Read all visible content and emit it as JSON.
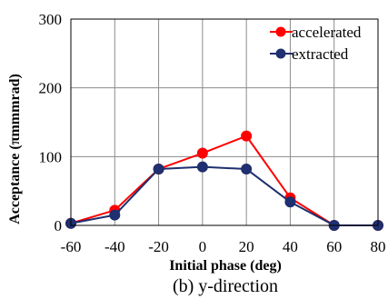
{
  "chart_data": {
    "type": "line",
    "xlabel": "Initial phase (deg)",
    "ylabel": "Acceptance (πmmmrad)",
    "caption": "(b) y-direction",
    "xlim": [
      -60,
      80
    ],
    "ylim": [
      0,
      300
    ],
    "x_ticks": [
      -60,
      -40,
      -20,
      0,
      20,
      40,
      60,
      80
    ],
    "y_ticks": [
      0,
      100,
      200,
      300
    ],
    "grid": true,
    "legend_position": "top-right",
    "x": [
      -60,
      -40,
      -20,
      0,
      20,
      40,
      60,
      80
    ],
    "series": [
      {
        "name": "accelerated",
        "color": "#ff0000",
        "values": [
          3,
          22,
          82,
          105,
          130,
          40,
          0,
          0
        ]
      },
      {
        "name": "extracted",
        "color": "#1f2f6f",
        "values": [
          3,
          15,
          82,
          85,
          82,
          34,
          0,
          0
        ]
      }
    ]
  }
}
